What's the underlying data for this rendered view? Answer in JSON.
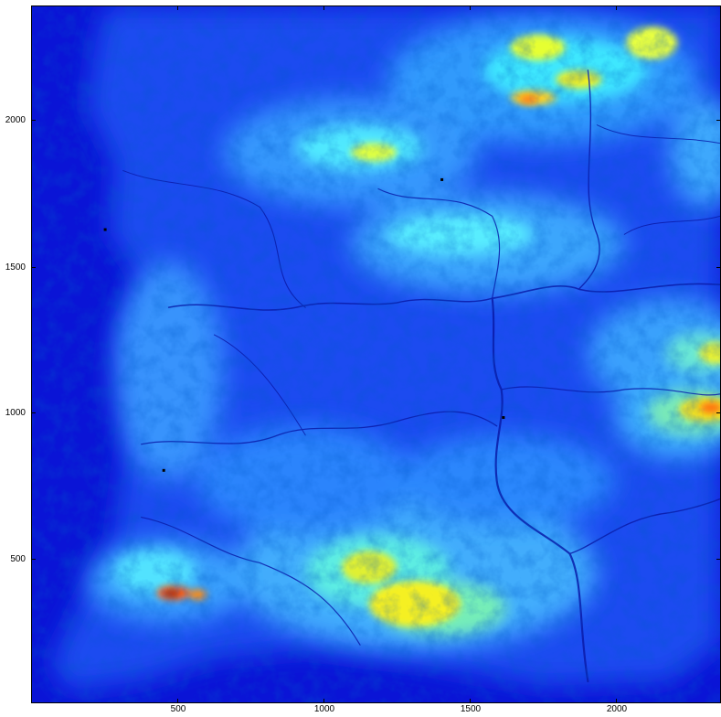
{
  "map": {
    "x_ticks": [
      "500",
      "1000",
      "1500",
      "2000"
    ],
    "y_ticks": [
      "2000",
      "1500",
      "1000",
      "500"
    ],
    "x_range": [
      0,
      2350
    ],
    "y_range": [
      0,
      2370
    ],
    "colormap": [
      "#00008f",
      "#0000ff",
      "#0080ff",
      "#00ffff",
      "#80ff80",
      "#ffff00",
      "#ff8000",
      "#ff0000",
      "#800000"
    ],
    "background_color": "#0a14d6",
    "markers": [
      {
        "x": 1400,
        "y": 1780
      },
      {
        "x": 250,
        "y": 1610
      },
      {
        "x": 1610,
        "y": 970
      },
      {
        "x": 450,
        "y": 790
      }
    ]
  }
}
